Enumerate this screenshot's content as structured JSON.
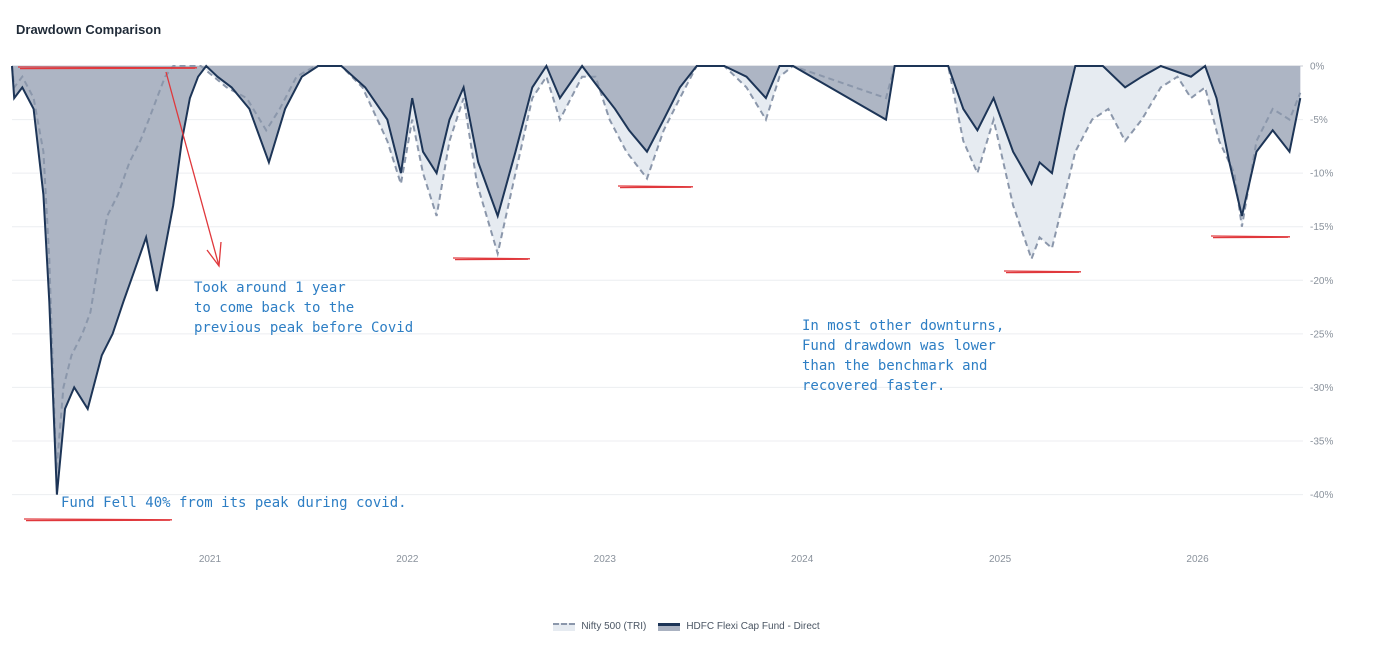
{
  "chart_data": {
    "type": "area",
    "title": "Drawdown Comparison",
    "xlabel": "",
    "ylabel": "",
    "x_range": [
      "2020-01-01",
      "2026-07-15"
    ],
    "x_ticks": [
      "2021",
      "2022",
      "2023",
      "2024",
      "2025",
      "2026"
    ],
    "ylim": [
      -42,
      0
    ],
    "y_ticks": [
      "0%",
      "-5%",
      "-10%",
      "-15%",
      "-20%",
      "-25%",
      "-30%",
      "-35%",
      "-40%"
    ],
    "y_tick_values": [
      0,
      -5,
      -10,
      -15,
      -20,
      -25,
      -30,
      -35,
      -40
    ],
    "grid": true,
    "legend_position": "bottom",
    "series": [
      {
        "name": "Nifty 500 (TRI)",
        "style": "dashed",
        "color": "#8b97ab",
        "fill": "#e6ebf1",
        "points": [
          [
            "2020-01-01",
            0
          ],
          [
            "2020-01-05",
            -2
          ],
          [
            "2020-01-20",
            -1
          ],
          [
            "2020-02-10",
            -3
          ],
          [
            "2020-02-28",
            -8
          ],
          [
            "2020-03-10",
            -18
          ],
          [
            "2020-03-23",
            -38
          ],
          [
            "2020-04-05",
            -30
          ],
          [
            "2020-04-20",
            -27
          ],
          [
            "2020-05-10",
            -25
          ],
          [
            "2020-05-25",
            -23
          ],
          [
            "2020-06-10",
            -18
          ],
          [
            "2020-06-25",
            -14
          ],
          [
            "2020-07-15",
            -12
          ],
          [
            "2020-08-05",
            -9
          ],
          [
            "2020-08-25",
            -7
          ],
          [
            "2020-09-10",
            -5
          ],
          [
            "2020-09-25",
            -3
          ],
          [
            "2020-10-10",
            -1
          ],
          [
            "2020-10-25",
            0
          ],
          [
            "2020-12-15",
            0
          ],
          [
            "2021-02-01",
            -2
          ],
          [
            "2021-03-10",
            -3
          ],
          [
            "2021-04-15",
            -6
          ],
          [
            "2021-05-10",
            -4
          ],
          [
            "2021-06-10",
            -1
          ],
          [
            "2021-07-15",
            0
          ],
          [
            "2021-09-01",
            0
          ],
          [
            "2021-10-10",
            -2
          ],
          [
            "2021-11-25",
            -7
          ],
          [
            "2021-12-20",
            -11
          ],
          [
            "2022-01-10",
            -5
          ],
          [
            "2022-01-30",
            -10
          ],
          [
            "2022-02-24",
            -14
          ],
          [
            "2022-03-20",
            -7
          ],
          [
            "2022-04-15",
            -3
          ],
          [
            "2022-05-10",
            -11
          ],
          [
            "2022-06-17",
            -17.5
          ],
          [
            "2022-07-20",
            -10
          ],
          [
            "2022-08-20",
            -3
          ],
          [
            "2022-09-15",
            -1
          ],
          [
            "2022-10-10",
            -5
          ],
          [
            "2022-11-20",
            -1
          ],
          [
            "2022-12-15",
            -1
          ],
          [
            "2023-01-10",
            -5
          ],
          [
            "2023-02-10",
            -8
          ],
          [
            "2023-03-20",
            -10.5
          ],
          [
            "2023-04-20",
            -6
          ],
          [
            "2023-05-20",
            -3
          ],
          [
            "2023-06-20",
            0
          ],
          [
            "2023-08-10",
            0
          ],
          [
            "2023-09-20",
            -2
          ],
          [
            "2023-10-26",
            -5
          ],
          [
            "2023-11-20",
            -1
          ],
          [
            "2023-12-15",
            0
          ],
          [
            "2024-06-04",
            -3
          ],
          [
            "2024-06-20",
            0
          ],
          [
            "2024-09-27",
            0
          ],
          [
            "2024-10-25",
            -7
          ],
          [
            "2024-11-20",
            -10
          ],
          [
            "2024-12-20",
            -5
          ],
          [
            "2025-01-25",
            -13
          ],
          [
            "2025-02-28",
            -18
          ],
          [
            "2025-03-15",
            -16
          ],
          [
            "2025-04-07",
            -17
          ],
          [
            "2025-05-20",
            -8
          ],
          [
            "2025-06-20",
            -5
          ],
          [
            "2025-07-20",
            -4
          ],
          [
            "2025-08-20",
            -7
          ],
          [
            "2025-09-20",
            -5
          ],
          [
            "2025-10-25",
            -2
          ],
          [
            "2025-11-25",
            -1
          ],
          [
            "2025-12-20",
            -3
          ],
          [
            "2026-01-15",
            -2
          ],
          [
            "2026-02-10",
            -7
          ],
          [
            "2026-03-10",
            -10
          ],
          [
            "2026-03-24",
            -15
          ],
          [
            "2026-04-20",
            -7
          ],
          [
            "2026-05-20",
            -4
          ],
          [
            "2026-06-20",
            -5
          ],
          [
            "2026-07-10",
            -2.5
          ]
        ]
      },
      {
        "name": "HDFC Flexi Cap Fund - Direct",
        "style": "solid",
        "color": "#1d3557",
        "fill": "#aab2c1",
        "points": [
          [
            "2020-01-01",
            0
          ],
          [
            "2020-01-05",
            -3
          ],
          [
            "2020-01-20",
            -2
          ],
          [
            "2020-02-10",
            -4
          ],
          [
            "2020-02-28",
            -12
          ],
          [
            "2020-03-10",
            -22
          ],
          [
            "2020-03-24",
            -40
          ],
          [
            "2020-04-08",
            -32
          ],
          [
            "2020-04-25",
            -30
          ],
          [
            "2020-05-20",
            -32
          ],
          [
            "2020-06-15",
            -27
          ],
          [
            "2020-07-05",
            -25
          ],
          [
            "2020-07-25",
            -22
          ],
          [
            "2020-08-15",
            -19
          ],
          [
            "2020-09-05",
            -16
          ],
          [
            "2020-09-25",
            -21
          ],
          [
            "2020-10-10",
            -17
          ],
          [
            "2020-10-25",
            -13
          ],
          [
            "2020-11-10",
            -7
          ],
          [
            "2020-11-25",
            -3
          ],
          [
            "2020-12-10",
            -1
          ],
          [
            "2020-12-25",
            0
          ],
          [
            "2021-01-15",
            -1
          ],
          [
            "2021-02-10",
            -2
          ],
          [
            "2021-03-15",
            -4
          ],
          [
            "2021-04-20",
            -9
          ],
          [
            "2021-05-20",
            -4
          ],
          [
            "2021-06-20",
            -1
          ],
          [
            "2021-07-20",
            0
          ],
          [
            "2021-09-01",
            0
          ],
          [
            "2021-10-15",
            -2
          ],
          [
            "2021-11-25",
            -5
          ],
          [
            "2021-12-20",
            -10
          ],
          [
            "2022-01-10",
            -3
          ],
          [
            "2022-01-30",
            -8
          ],
          [
            "2022-02-24",
            -10
          ],
          [
            "2022-03-20",
            -5
          ],
          [
            "2022-04-15",
            -2
          ],
          [
            "2022-05-12",
            -9
          ],
          [
            "2022-06-17",
            -14
          ],
          [
            "2022-07-20",
            -8
          ],
          [
            "2022-08-20",
            -2
          ],
          [
            "2022-09-15",
            0
          ],
          [
            "2022-10-10",
            -3
          ],
          [
            "2022-11-20",
            0
          ],
          [
            "2022-12-20",
            -2
          ],
          [
            "2023-01-20",
            -4
          ],
          [
            "2023-02-15",
            -6
          ],
          [
            "2023-03-20",
            -8
          ],
          [
            "2023-04-20",
            -5
          ],
          [
            "2023-05-20",
            -2
          ],
          [
            "2023-06-20",
            0
          ],
          [
            "2023-08-10",
            0
          ],
          [
            "2023-09-20",
            -1
          ],
          [
            "2023-10-26",
            -3
          ],
          [
            "2023-11-20",
            0
          ],
          [
            "2023-12-15",
            0
          ],
          [
            "2024-06-04",
            -5
          ],
          [
            "2024-06-20",
            0
          ],
          [
            "2024-09-27",
            0
          ],
          [
            "2024-10-25",
            -4
          ],
          [
            "2024-11-20",
            -6
          ],
          [
            "2024-12-20",
            -3
          ],
          [
            "2025-01-25",
            -8
          ],
          [
            "2025-02-28",
            -11
          ],
          [
            "2025-03-15",
            -9
          ],
          [
            "2025-04-07",
            -10
          ],
          [
            "2025-05-01",
            -4
          ],
          [
            "2025-05-20",
            0
          ],
          [
            "2025-07-10",
            0
          ],
          [
            "2025-08-20",
            -2
          ],
          [
            "2025-09-20",
            -1
          ],
          [
            "2025-10-25",
            0
          ],
          [
            "2025-12-20",
            -1
          ],
          [
            "2026-01-15",
            0
          ],
          [
            "2026-02-05",
            -3
          ],
          [
            "2026-03-01",
            -9
          ],
          [
            "2026-03-24",
            -14
          ],
          [
            "2026-04-20",
            -8
          ],
          [
            "2026-05-20",
            -6
          ],
          [
            "2026-06-20",
            -8
          ],
          [
            "2026-07-10",
            -3
          ]
        ]
      }
    ],
    "annotations": [
      {
        "lines": [
          "Took around 1 year",
          "to come back to the",
          "previous peak before Covid"
        ]
      },
      {
        "lines": [
          "In most other downturns,",
          "Fund drawdown was lower",
          "than the benchmark and",
          "recovered faster."
        ]
      },
      {
        "lines": [
          "Fund Fell 40% from its peak during covid."
        ]
      }
    ]
  },
  "legend": {
    "benchmark_label": "Nifty 500 (TRI)",
    "fund_label": "HDFC Flexi Cap Fund - Direct"
  }
}
